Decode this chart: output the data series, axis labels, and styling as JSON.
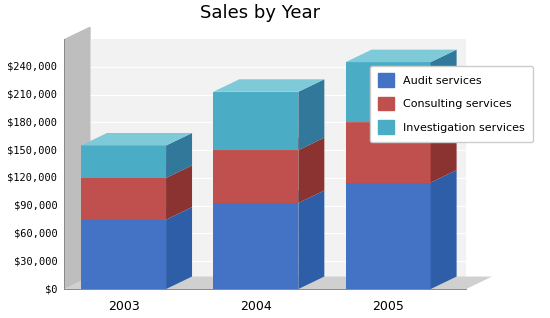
{
  "title": "Sales by Year",
  "years": [
    "2003",
    "2004",
    "2005"
  ],
  "audit": [
    75000,
    93000,
    115000
  ],
  "consulting": [
    45000,
    57000,
    65000
  ],
  "investigation": [
    35000,
    63000,
    65000
  ],
  "colors": {
    "audit_front": "#4472C4",
    "audit_side": "#2E5EA8",
    "audit_top": "#7AADD4",
    "cons_front": "#C0504D",
    "cons_side": "#8B3330",
    "cons_top": "#D4827F",
    "inv_front": "#4BACC6",
    "inv_side": "#31789B",
    "inv_top": "#7ECAD8"
  },
  "wall_left": "#C8C8C8",
  "wall_bottom": "#DCDCDC",
  "wall_bg": "#F2F2F2",
  "grid_color": "#FFFFFF",
  "legend_labels": [
    "Audit services",
    "Consulting services",
    "Investigation services"
  ],
  "yticks": [
    0,
    30000,
    60000,
    90000,
    120000,
    150000,
    180000,
    210000,
    240000
  ],
  "ymax": 270000,
  "title_fontsize": 13,
  "bg_color": "#FFFFFF"
}
